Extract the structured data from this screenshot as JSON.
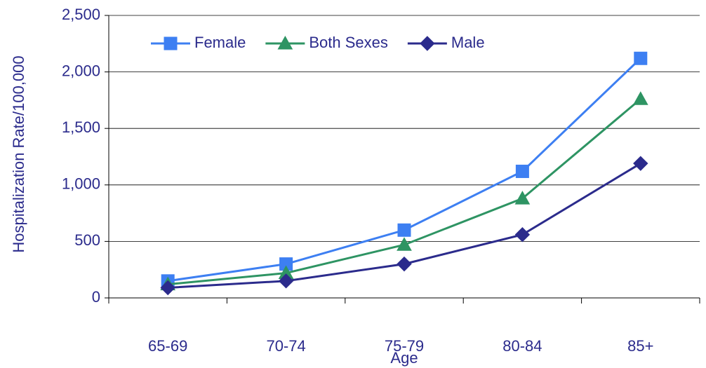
{
  "chart_data": {
    "type": "line",
    "y_label": "Hospitalization Rate/100,000",
    "x_label": "Age",
    "categories": [
      "65-69",
      "70-74",
      "75-79",
      "80-84",
      "85+"
    ],
    "series": [
      {
        "name": "Female",
        "color": "#3d7ff2",
        "marker": "square",
        "values": [
          150,
          300,
          600,
          1120,
          2120
        ]
      },
      {
        "name": "Both Sexes",
        "color": "#2e9463",
        "marker": "triangle",
        "values": [
          120,
          220,
          470,
          880,
          1760
        ]
      },
      {
        "name": "Male",
        "color": "#2b2b8c",
        "marker": "diamond",
        "values": [
          90,
          150,
          300,
          560,
          1190
        ]
      }
    ],
    "ylim": [
      0,
      2500
    ],
    "yticks": [
      0,
      500,
      {
        "value": 1000,
        "label": "1,000"
      },
      {
        "value": 1500,
        "label": "1,500"
      },
      {
        "value": 2000,
        "label": "2,000"
      },
      {
        "value": 2500,
        "label": "2,500"
      }
    ],
    "grid": true,
    "legend": "top"
  }
}
